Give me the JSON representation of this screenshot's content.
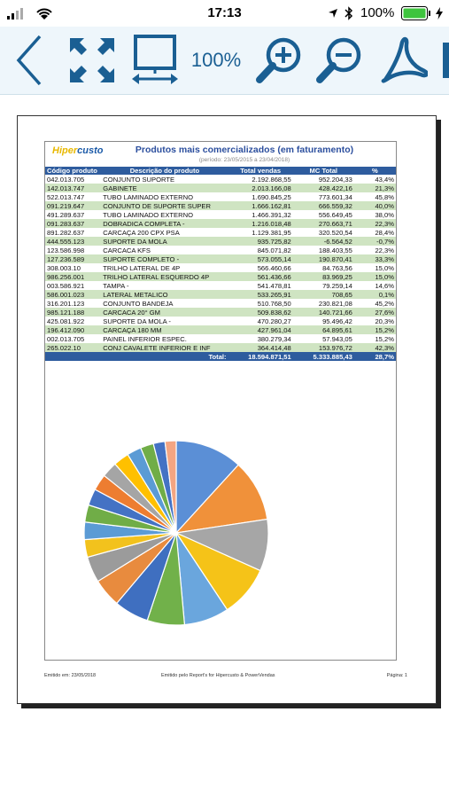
{
  "status_bar": {
    "time": "17:13",
    "battery": "100%"
  },
  "toolbar": {
    "zoom_label": "100%"
  },
  "report": {
    "logo_a": "Hiper",
    "logo_b": "custo",
    "title": "Produtos mais comercializados (em faturamento)",
    "period": "(período: 23/05/2015 a 23/04/2018)",
    "columns": [
      "Código produto",
      "Descrição do produto",
      "Total vendas",
      "MC Total",
      "%"
    ],
    "rows": [
      [
        "042.013.705",
        "CONJUNTO SUPORTE",
        "2.192.868,55",
        "952.204,33",
        "43,4%"
      ],
      [
        "142.013.747",
        "GABINETE",
        "2.013.166,08",
        "428.422,16",
        "21,3%"
      ],
      [
        "522.013.747",
        "TUBO LAMINADO EXTERNO",
        "1.690.845,25",
        "773.601,34",
        "45,8%"
      ],
      [
        "091.219.647",
        "CONJUNTO DE SUPORTE SUPER",
        "1.666.162,81",
        "666.559,32",
        "40,0%"
      ],
      [
        "491.289.637",
        "TUBO LAMINADO EXTERNO",
        "1.466.391,32",
        "556.649,45",
        "38,0%"
      ],
      [
        "091.283.637",
        "DOBRADICA COMPLETA -",
        "1.216.018,48",
        "270.663,71",
        "22,3%"
      ],
      [
        "891.282.637",
        "CARCAÇA 200 CPX PSA",
        "1.129.381,95",
        "320.520,54",
        "28,4%"
      ],
      [
        "444.555.123",
        "SUPORTE DA MOLA",
        "935.725,82",
        "-6.564,52",
        "-0,7%"
      ],
      [
        "123.586.998",
        "CARCACA KFS",
        "845.071,82",
        "188.403,55",
        "22,3%"
      ],
      [
        "127.236.589",
        "SUPORTE COMPLETO -",
        "573.055,14",
        "190.870,41",
        "33,3%"
      ],
      [
        "308.003.10",
        "TRILHO LATERAL DE 4P",
        "566.460,66",
        "84.763,56",
        "15,0%"
      ],
      [
        "986.256.001",
        "TRILHO LATERAL ESQUERDO 4P",
        "561.436,66",
        "83.969,25",
        "15,0%"
      ],
      [
        "003.586.921",
        "TAMPA -",
        "541.478,81",
        "79.259,14",
        "14,6%"
      ],
      [
        "586.001.023",
        "LATERAL METALICO",
        "533.265,91",
        "708,65",
        "0,1%"
      ],
      [
        "316.201.123",
        "CONJUNTO BANDEJA",
        "510.768,50",
        "230.821,08",
        "45,2%"
      ],
      [
        "985.121.188",
        "CARCACA 20° GM",
        "509.838,62",
        "140.721,66",
        "27,6%"
      ],
      [
        "425.081.922",
        "SUPORTE DA MOLA -",
        "470.280,27",
        "95.496,42",
        "20,3%"
      ],
      [
        "196.412.090",
        "CARCAÇA 180 MM",
        "427.961,04",
        "64.895,61",
        "15,2%"
      ],
      [
        "002.013.705",
        "PAINEL INFERIOR ESPEC.",
        "380.279,34",
        "57.943,05",
        "15,2%"
      ],
      [
        "265.022.10",
        "CONJ CAVALETE INFERIOR E INF",
        "364.414,48",
        "153.976,72",
        "42,3%"
      ]
    ],
    "total": {
      "label": "Total:",
      "sales": "18.594.871,51",
      "mc": "5.333.885,43",
      "pct": "28,7%"
    },
    "pie_values": [
      2192868.55,
      2013166.08,
      1690845.25,
      1666162.81,
      1466391.32,
      1216018.48,
      1129381.95,
      935725.82,
      845071.82,
      573055.14,
      566460.66,
      561436.66,
      541478.81,
      533265.91,
      510768.5,
      509838.62,
      470280.27,
      427961.04,
      380279.34,
      364414.48
    ],
    "pie_colors": [
      "#5b8fd6",
      "#f0913a",
      "#a6a6a6",
      "#f5c318",
      "#6aa6dd",
      "#71b14a",
      "#3f6fc0",
      "#e88b3e",
      "#9b9b9b",
      "#f2c21d",
      "#5b9bd5",
      "#70ad47",
      "#4472c4",
      "#ed7d31",
      "#a5a5a5",
      "#ffc000",
      "#5b9bd5",
      "#70ad47",
      "#4472c4",
      "#f4a582"
    ],
    "footer": {
      "left": "Emitido em: 23/05/2018",
      "center": "Emitido pelo Report's for Hipercusto & PowerVendas",
      "right": "Página: 1"
    }
  }
}
